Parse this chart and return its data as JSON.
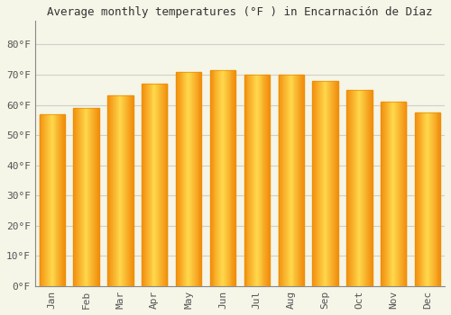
{
  "months": [
    "Jan",
    "Feb",
    "Mar",
    "Apr",
    "May",
    "Jun",
    "Jul",
    "Aug",
    "Sep",
    "Oct",
    "Nov",
    "Dec"
  ],
  "values": [
    57,
    59,
    63,
    67,
    71,
    71.5,
    70,
    70,
    68,
    65,
    61,
    57.5
  ],
  "bar_color_light": "#FFD966",
  "bar_color_main": "#FFA500",
  "bar_edge_color": "#E89000",
  "title": "Average monthly temperatures (°F ) in Encarnación de Díaz",
  "ylabel_ticks": [
    "0°F",
    "10°F",
    "20°F",
    "30°F",
    "40°F",
    "50°F",
    "60°F",
    "70°F",
    "80°F"
  ],
  "ytick_vals": [
    0,
    10,
    20,
    30,
    40,
    50,
    60,
    70,
    80
  ],
  "ylim": [
    0,
    88
  ],
  "background_color": "#f5f5e8",
  "grid_color": "#d0d0c8",
  "title_fontsize": 9,
  "tick_fontsize": 8,
  "bar_width": 0.75
}
